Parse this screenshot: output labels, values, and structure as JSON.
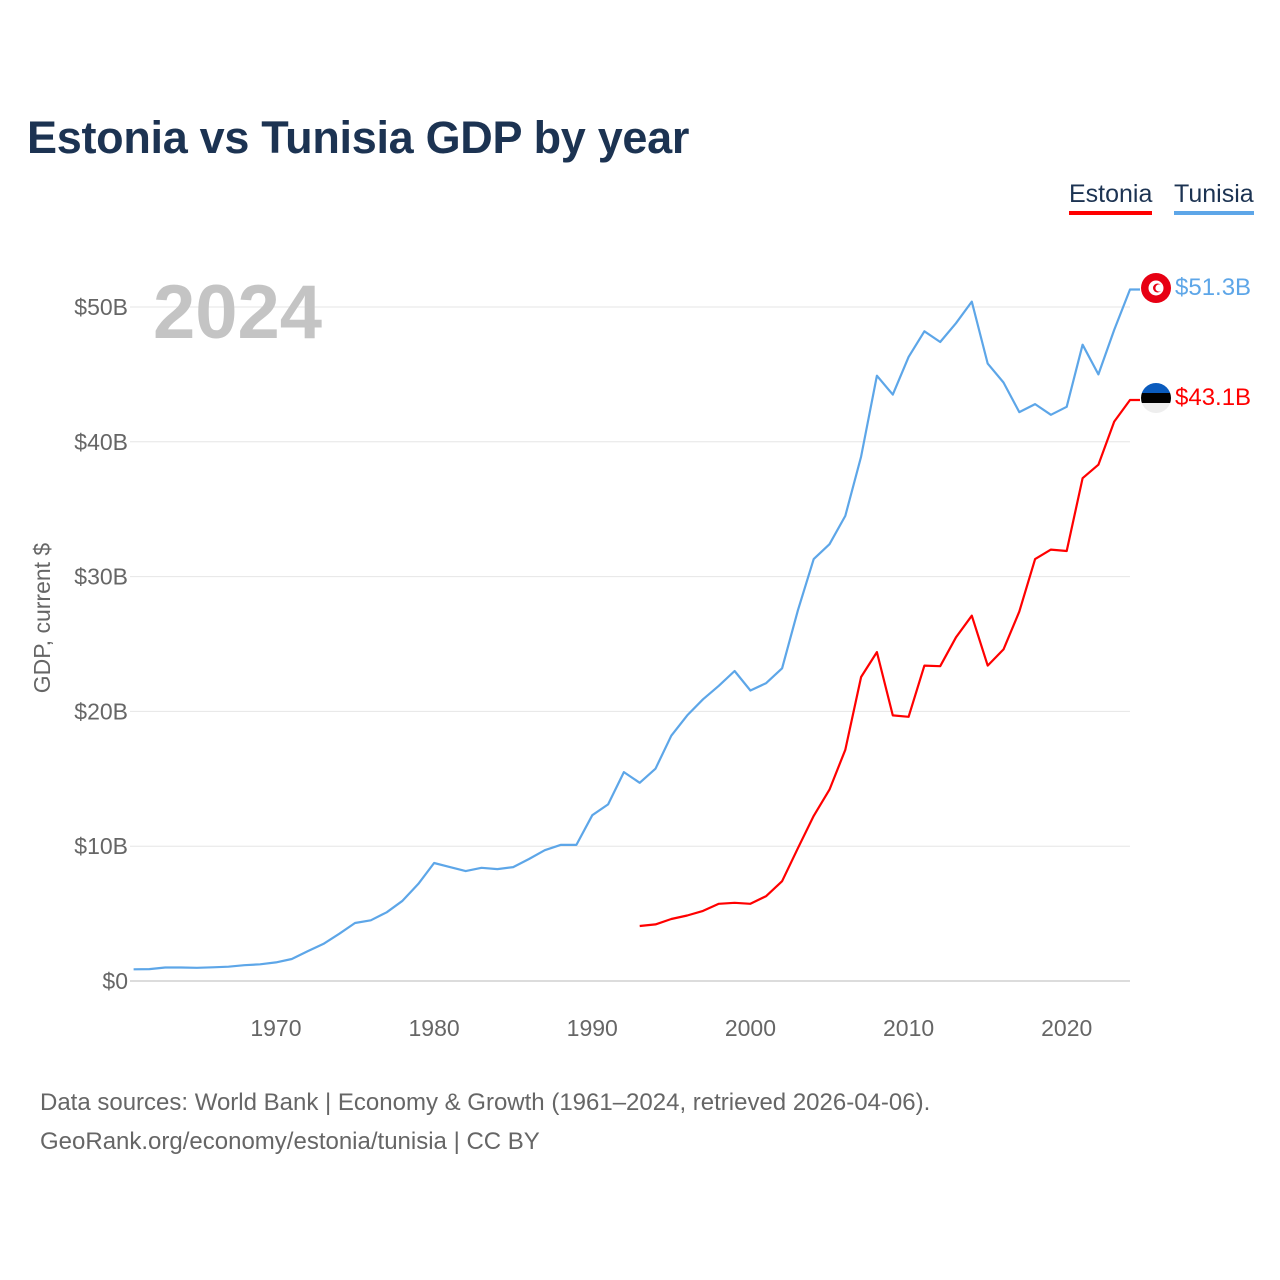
{
  "title": "Estonia vs Tunisia GDP by year",
  "legend": [
    {
      "label": "Estonia",
      "color": "#ff0000"
    },
    {
      "label": "Tunisia",
      "color": "#5da6e8"
    }
  ],
  "year_label": "2024",
  "end_labels": {
    "tunisia": "$51.3B",
    "estonia": "$43.1B"
  },
  "flags": {
    "tunisia": "tunisia-flag-icon",
    "estonia": "estonia-flag-icon"
  },
  "footer": {
    "line1": "Data sources: World Bank | Economy & Growth (1961–2024, retrieved 2026-04-06).",
    "line2": "GeoRank.org/economy/estonia/tunisia | CC BY"
  },
  "chart_data": {
    "type": "line",
    "title": "Estonia vs Tunisia GDP by year",
    "xlabel": "",
    "ylabel": "GDP, current $",
    "xlim": [
      1961,
      2024
    ],
    "ylim": [
      0,
      50
    ],
    "unit": "billions USD",
    "yticks": [
      0,
      10,
      20,
      30,
      40,
      50
    ],
    "ytick_labels": [
      "$0",
      "$10B",
      "$20B",
      "$30B",
      "$40B",
      "$50B"
    ],
    "xticks": [
      1970,
      1980,
      1990,
      2000,
      2010,
      2020
    ],
    "xtick_labels": [
      "1970",
      "1980",
      "1990",
      "2000",
      "2010",
      "2020"
    ],
    "grid": true,
    "legend_position": "top-right",
    "series": [
      {
        "name": "Tunisia",
        "color": "#5da6e8",
        "start_year": 1961,
        "values": [
          0.87,
          0.88,
          1.0,
          1.0,
          0.98,
          1.02,
          1.06,
          1.17,
          1.24,
          1.38,
          1.63,
          2.2,
          2.75,
          3.5,
          4.3,
          4.5,
          5.1,
          5.95,
          7.2,
          8.75,
          8.45,
          8.15,
          8.4,
          8.3,
          8.45,
          9.05,
          9.7,
          10.1,
          10.1,
          12.3,
          13.1,
          15.5,
          14.7,
          15.75,
          18.2,
          19.7,
          20.9,
          21.9,
          23.0,
          21.55,
          22.1,
          23.2,
          27.5,
          31.3,
          32.4,
          34.5,
          38.9,
          44.9,
          43.5,
          46.3,
          48.2,
          47.4,
          48.8,
          50.4,
          45.8,
          44.4,
          42.2,
          42.8,
          42.0,
          42.6,
          47.2,
          45.0,
          48.3,
          51.3
        ]
      },
      {
        "name": "Estonia",
        "color": "#ff0000",
        "start_year": 1993,
        "values": [
          4.08,
          4.2,
          4.6,
          4.86,
          5.2,
          5.73,
          5.8,
          5.73,
          6.3,
          7.4,
          9.85,
          12.25,
          14.2,
          17.15,
          22.55,
          24.4,
          19.7,
          19.6,
          23.4,
          23.35,
          25.5,
          27.1,
          23.4,
          24.6,
          27.4,
          31.3,
          32.0,
          31.9,
          37.3,
          38.3,
          41.5,
          43.1
        ]
      }
    ]
  }
}
